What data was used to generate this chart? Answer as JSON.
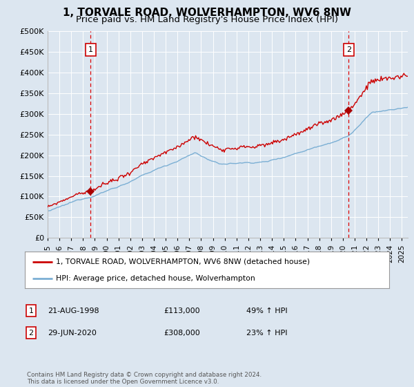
{
  "title": "1, TORVALE ROAD, WOLVERHAMPTON, WV6 8NW",
  "subtitle": "Price paid vs. HM Land Registry's House Price Index (HPI)",
  "background_color": "#dce6f0",
  "plot_bg_color": "#dce6f0",
  "ylim": [
    0,
    500000
  ],
  "yticks": [
    0,
    50000,
    100000,
    150000,
    200000,
    250000,
    300000,
    350000,
    400000,
    450000,
    500000
  ],
  "xlim_start": 1995.0,
  "xlim_end": 2025.5,
  "red_line_color": "#cc0000",
  "blue_line_color": "#7bafd4",
  "transaction1_x": 1998.642,
  "transaction1_y": 113000,
  "transaction2_x": 2020.5,
  "transaction2_y": 308000,
  "vline_color": "#dd0000",
  "marker_color": "#aa0000",
  "legend_label1": "1, TORVALE ROAD, WOLVERHAMPTON, WV6 8NW (detached house)",
  "legend_label2": "HPI: Average price, detached house, Wolverhampton",
  "annot1_label": "1",
  "annot2_label": "2",
  "annot1_date": "21-AUG-1998",
  "annot1_price": "£113,000",
  "annot1_hpi": "49% ↑ HPI",
  "annot2_date": "29-JUN-2020",
  "annot2_price": "£308,000",
  "annot2_hpi": "23% ↑ HPI",
  "footer": "Contains HM Land Registry data © Crown copyright and database right 2024.\nThis data is licensed under the Open Government Licence v3.0.",
  "grid_color": "#ffffff",
  "title_fontsize": 11,
  "subtitle_fontsize": 9.5
}
